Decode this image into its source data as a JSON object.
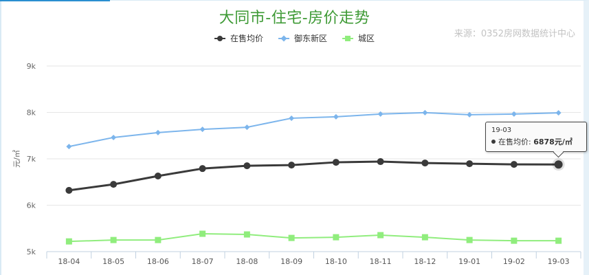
{
  "header": {
    "title": "大同市-住宅-房价走势",
    "source": "来源：0352房网数据统计中心"
  },
  "legend": [
    {
      "label": "在售均价",
      "color": "#3a3a3a",
      "marker": "circle"
    },
    {
      "label": "御东新区",
      "color": "#7cb5ec",
      "marker": "diamond"
    },
    {
      "label": "城区",
      "color": "#90ed7d",
      "marker": "square"
    }
  ],
  "axis": {
    "y_title": "元/㎡",
    "y_ticks": [
      "9k",
      "8k",
      "7k",
      "6k",
      "5k"
    ]
  },
  "tooltip": {
    "date": "19-03",
    "series": "在售均价",
    "sep": ": ",
    "value": "6878元/㎡"
  },
  "chart_data": {
    "type": "line",
    "title": "大同市-住宅-房价走势",
    "subtitle": "来源：0352房网数据统计中心",
    "xlabel": "",
    "ylabel": "元/㎡",
    "ylim": [
      5000,
      9000
    ],
    "yticks": [
      5000,
      6000,
      7000,
      8000,
      9000
    ],
    "grid": true,
    "legend_position": "top",
    "categories": [
      "18-04",
      "18-05",
      "18-06",
      "18-07",
      "18-08",
      "18-09",
      "18-10",
      "18-11",
      "18-12",
      "19-01",
      "19-02",
      "19-03"
    ],
    "series": [
      {
        "name": "在售均价",
        "color": "#3a3a3a",
        "values": [
          6320,
          6450,
          6630,
          6790,
          6850,
          6865,
          6925,
          6940,
          6910,
          6895,
          6880,
          6878
        ]
      },
      {
        "name": "御东新区",
        "color": "#7cb5ec",
        "values": [
          7265,
          7460,
          7565,
          7635,
          7680,
          7875,
          7905,
          7965,
          7995,
          7950,
          7965,
          7990
        ]
      },
      {
        "name": "城区",
        "color": "#90ed7d",
        "values": [
          5220,
          5250,
          5250,
          5385,
          5370,
          5295,
          5310,
          5355,
          5310,
          5250,
          5235,
          5235
        ]
      }
    ],
    "annotations": [
      {
        "type": "tooltip",
        "x": "19-03",
        "series": "在售均价",
        "text": "6878元/㎡"
      }
    ]
  }
}
